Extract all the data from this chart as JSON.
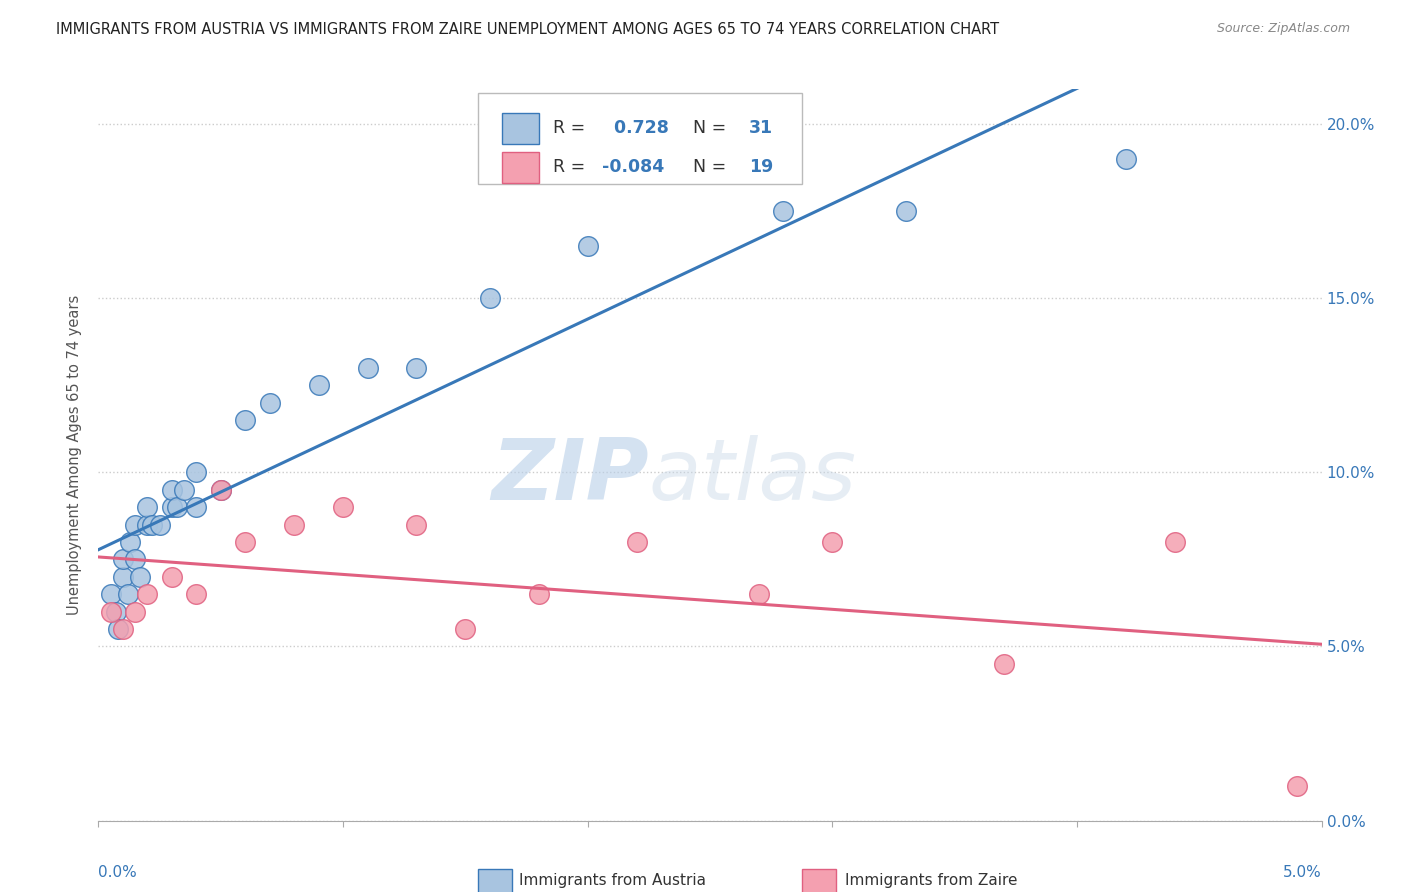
{
  "title": "IMMIGRANTS FROM AUSTRIA VS IMMIGRANTS FROM ZAIRE UNEMPLOYMENT AMONG AGES 65 TO 74 YEARS CORRELATION CHART",
  "source": "Source: ZipAtlas.com",
  "ylabel": "Unemployment Among Ages 65 to 74 years",
  "r_austria": 0.728,
  "n_austria": 31,
  "r_zaire": -0.084,
  "n_zaire": 19,
  "austria_color": "#a8c4e0",
  "zaire_color": "#f4a0b0",
  "line_austria_color": "#3878b8",
  "line_zaire_color": "#e06080",
  "austria_x": [
    0.0005,
    0.0007,
    0.0008,
    0.001,
    0.001,
    0.0012,
    0.0013,
    0.0015,
    0.0015,
    0.0017,
    0.002,
    0.002,
    0.0022,
    0.0025,
    0.003,
    0.003,
    0.0032,
    0.0035,
    0.004,
    0.004,
    0.005,
    0.006,
    0.007,
    0.009,
    0.011,
    0.013,
    0.016,
    0.02,
    0.028,
    0.033,
    0.042
  ],
  "austria_y": [
    0.065,
    0.06,
    0.055,
    0.07,
    0.075,
    0.065,
    0.08,
    0.085,
    0.075,
    0.07,
    0.085,
    0.09,
    0.085,
    0.085,
    0.09,
    0.095,
    0.09,
    0.095,
    0.09,
    0.1,
    0.095,
    0.115,
    0.12,
    0.125,
    0.13,
    0.13,
    0.15,
    0.165,
    0.175,
    0.175,
    0.19
  ],
  "zaire_x": [
    0.0005,
    0.001,
    0.0015,
    0.002,
    0.003,
    0.004,
    0.005,
    0.006,
    0.008,
    0.01,
    0.013,
    0.015,
    0.018,
    0.022,
    0.027,
    0.03,
    0.037,
    0.044,
    0.049
  ],
  "zaire_y": [
    0.06,
    0.055,
    0.06,
    0.065,
    0.07,
    0.065,
    0.095,
    0.08,
    0.085,
    0.09,
    0.085,
    0.055,
    0.065,
    0.08,
    0.065,
    0.08,
    0.045,
    0.08,
    0.01
  ],
  "xmin": 0.0,
  "xmax": 0.05,
  "ymin": 0.0,
  "ymax": 0.21,
  "watermark_zip": "ZIP",
  "watermark_atlas": "atlas",
  "background_color": "#ffffff",
  "grid_color": "#cccccc",
  "text_color_dark": "#333333",
  "text_color_blue": "#3878b8",
  "text_color_pink": "#e06080"
}
